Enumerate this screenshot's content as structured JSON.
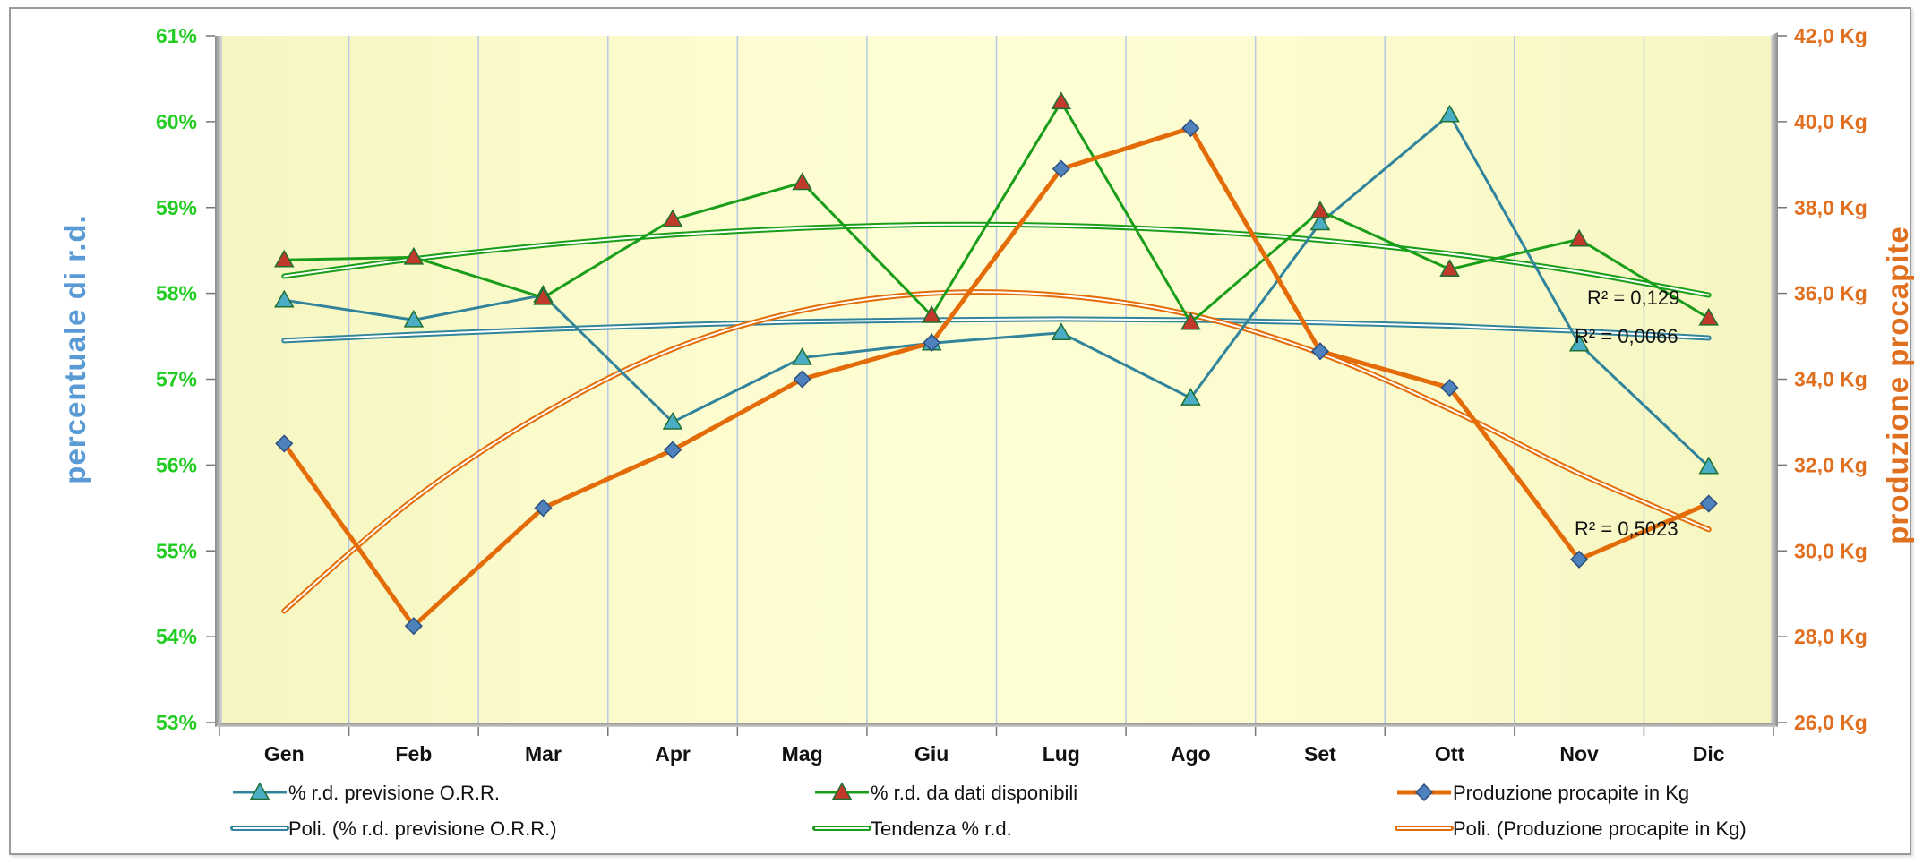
{
  "chart_data": {
    "type": "line",
    "categories": [
      "Gen",
      "Feb",
      "Mar",
      "Apr",
      "Mag",
      "Giu",
      "Lug",
      "Ago",
      "Set",
      "Ott",
      "Nov",
      "Dic"
    ],
    "y_left": {
      "label": "percentuale di r.d.",
      "range": [
        53,
        61
      ],
      "ticks": [
        "53%",
        "54%",
        "55%",
        "56%",
        "57%",
        "58%",
        "59%",
        "60%",
        "61%"
      ],
      "color": "#22cc22"
    },
    "y_right": {
      "label": "produzione procapite",
      "range": [
        26,
        42
      ],
      "ticks": [
        "26,0 Kg",
        "28,0 Kg",
        "30,0 Kg",
        "32,0 Kg",
        "34,0 Kg",
        "36,0 Kg",
        "38,0 Kg",
        "40,0 Kg",
        "42,0 Kg"
      ],
      "color": "#e07020"
    },
    "grid": "vertical",
    "plot_background": "#ffffcc",
    "legend_position": "bottom",
    "series": [
      {
        "name": "% r.d. previsione O.R.R.",
        "axis": "left",
        "color": "#31849b",
        "marker": "triangle",
        "marker_color": "#4bacc6",
        "values": [
          57.92,
          57.69,
          57.98,
          56.5,
          57.25,
          57.42,
          57.54,
          56.78,
          58.82,
          60.08,
          57.41,
          55.98
        ]
      },
      {
        "name": "% r.d. da dati disponibili",
        "axis": "left",
        "color": "#1a9e1a",
        "marker": "triangle",
        "marker_color": "#c0392b",
        "values": [
          58.39,
          58.42,
          57.95,
          58.86,
          59.29,
          57.74,
          60.23,
          57.66,
          58.96,
          58.28,
          58.63,
          57.71
        ]
      },
      {
        "name": "Produzione procapite in Kg",
        "axis": "right",
        "color": "#e36c09",
        "marker": "diamond",
        "marker_color": "#4f81bd",
        "values": [
          32.5,
          28.25,
          31.0,
          32.35,
          34.0,
          34.85,
          38.9,
          39.85,
          34.65,
          33.8,
          29.8,
          31.1
        ]
      }
    ],
    "trendlines": [
      {
        "name": "Poli. (% r.d. previsione O.R.R.)",
        "axis": "left",
        "color": "#31849b",
        "style": "double",
        "values": [
          57.45,
          57.52,
          57.58,
          57.63,
          57.67,
          57.69,
          57.7,
          57.69,
          57.66,
          57.62,
          57.56,
          57.48
        ],
        "r2": "R² = 0,0066"
      },
      {
        "name": "Tendenza % r.d.",
        "axis": "left",
        "color": "#1a9e1a",
        "style": "double",
        "values": [
          58.2,
          58.4,
          58.56,
          58.68,
          58.76,
          58.8,
          58.79,
          58.73,
          58.62,
          58.46,
          58.25,
          57.98
        ],
        "r2": "R² = 0,129"
      },
      {
        "name": "Poli. (Produzione procapite in Kg)",
        "axis": "right",
        "color": "#e36c09",
        "style": "double",
        "values": [
          28.6,
          31.2,
          33.2,
          34.7,
          35.6,
          36.0,
          35.95,
          35.5,
          34.6,
          33.3,
          31.8,
          30.5
        ],
        "r2": "R² = 0,5023"
      }
    ]
  }
}
